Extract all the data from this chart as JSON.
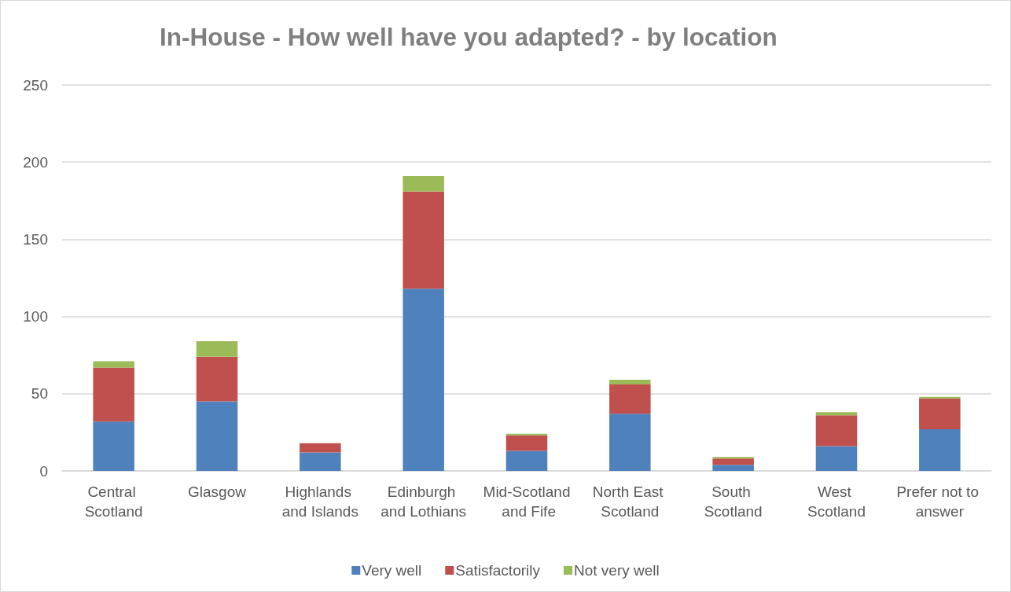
{
  "chart_data": {
    "type": "bar",
    "title": "In-House - How well have you adapted? - by location",
    "categories": [
      "Central Scotland",
      "Glasgow",
      "Highlands and Islands",
      "Edinburgh and Lothians",
      "Mid-Scotland and Fife",
      "North East Scotland",
      "South Scotland",
      "West Scotland",
      "Prefer not to answer"
    ],
    "series": [
      {
        "name": "Very well",
        "color": "#4f81bd",
        "values": [
          32,
          45,
          12,
          118,
          13,
          37,
          4,
          16,
          27
        ]
      },
      {
        "name": "Satisfactorily",
        "color": "#c0504d",
        "values": [
          35,
          29,
          6,
          63,
          10,
          19,
          4,
          20,
          20
        ]
      },
      {
        "name": "Not very well",
        "color": "#9bbb59",
        "values": [
          4,
          10,
          0,
          10,
          1,
          3,
          1,
          2,
          1
        ]
      }
    ],
    "stacked": true,
    "ylim": [
      0,
      250
    ],
    "yticks": [
      0,
      50,
      100,
      150,
      200,
      250
    ],
    "grid": "y",
    "legend": "bottom"
  }
}
